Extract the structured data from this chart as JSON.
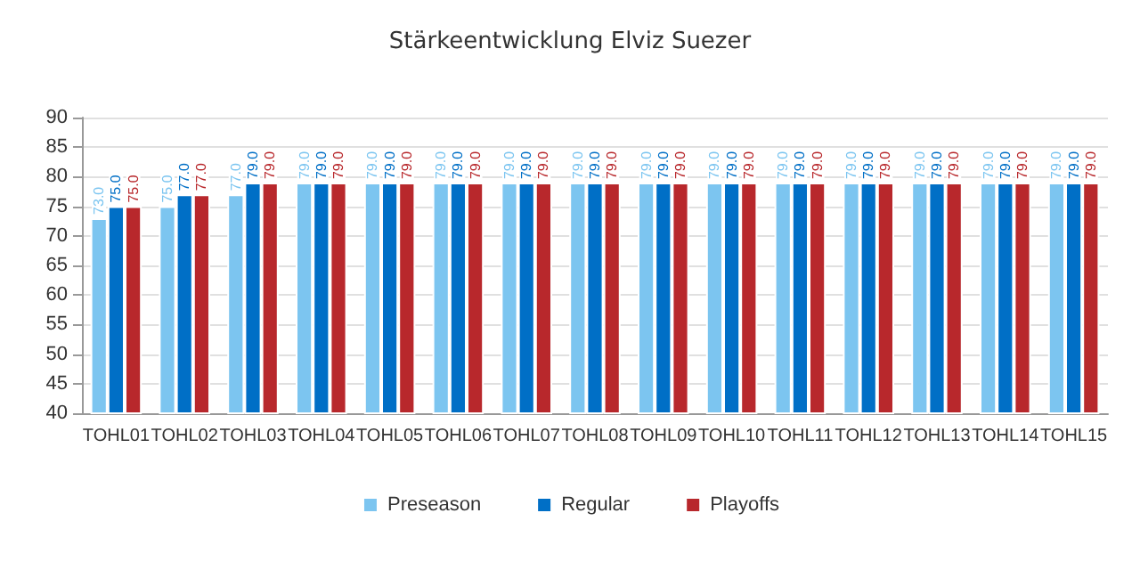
{
  "chart_data": {
    "type": "bar",
    "title": "Stärkeentwicklung Elviz Suezer",
    "categories": [
      "TOHL01",
      "TOHL02",
      "TOHL03",
      "TOHL04",
      "TOHL05",
      "TOHL06",
      "TOHL07",
      "TOHL08",
      "TOHL09",
      "TOHL10",
      "TOHL11",
      "TOHL12",
      "TOHL13",
      "TOHL14",
      "TOHL15"
    ],
    "series": [
      {
        "name": "Preseason",
        "color": "#7cc5f0",
        "values": [
          73,
          75,
          77,
          79,
          79,
          79,
          79,
          79,
          79,
          79,
          79,
          79,
          79,
          79,
          79
        ],
        "value_labels": [
          "73.0",
          "75.0",
          "77.0",
          "79.0",
          "79.0",
          "79.0",
          "79.0",
          "79.0",
          "79.0",
          "79.0",
          "79.0",
          "79.0",
          "79.0",
          "79.0",
          "79.0"
        ]
      },
      {
        "name": "Regular",
        "color": "#006fc6",
        "values": [
          75,
          77,
          79,
          79,
          79,
          79,
          79,
          79,
          79,
          79,
          79,
          79,
          79,
          79,
          79
        ],
        "value_labels": [
          "75.0",
          "77.0",
          "79.0",
          "79.0",
          "79.0",
          "79.0",
          "79.0",
          "79.0",
          "79.0",
          "79.0",
          "79.0",
          "79.0",
          "79.0",
          "79.0",
          "79.0"
        ]
      },
      {
        "name": "Playoffs",
        "color": "#b8282c",
        "values": [
          75,
          77,
          79,
          79,
          79,
          79,
          79,
          79,
          79,
          79,
          79,
          79,
          79,
          79,
          79
        ],
        "value_labels": [
          "75.0",
          "77.0",
          "79.0",
          "79.0",
          "79.0",
          "79.0",
          "79.0",
          "79.0",
          "79.0",
          "79.0",
          "79.0",
          "79.0",
          "79.0",
          "79.0",
          "79.0"
        ]
      }
    ],
    "ylim": [
      40,
      90
    ],
    "yticks": [
      40,
      45,
      50,
      55,
      60,
      65,
      70,
      75,
      80,
      85,
      90
    ],
    "grid": "y",
    "legend": "bottom"
  }
}
